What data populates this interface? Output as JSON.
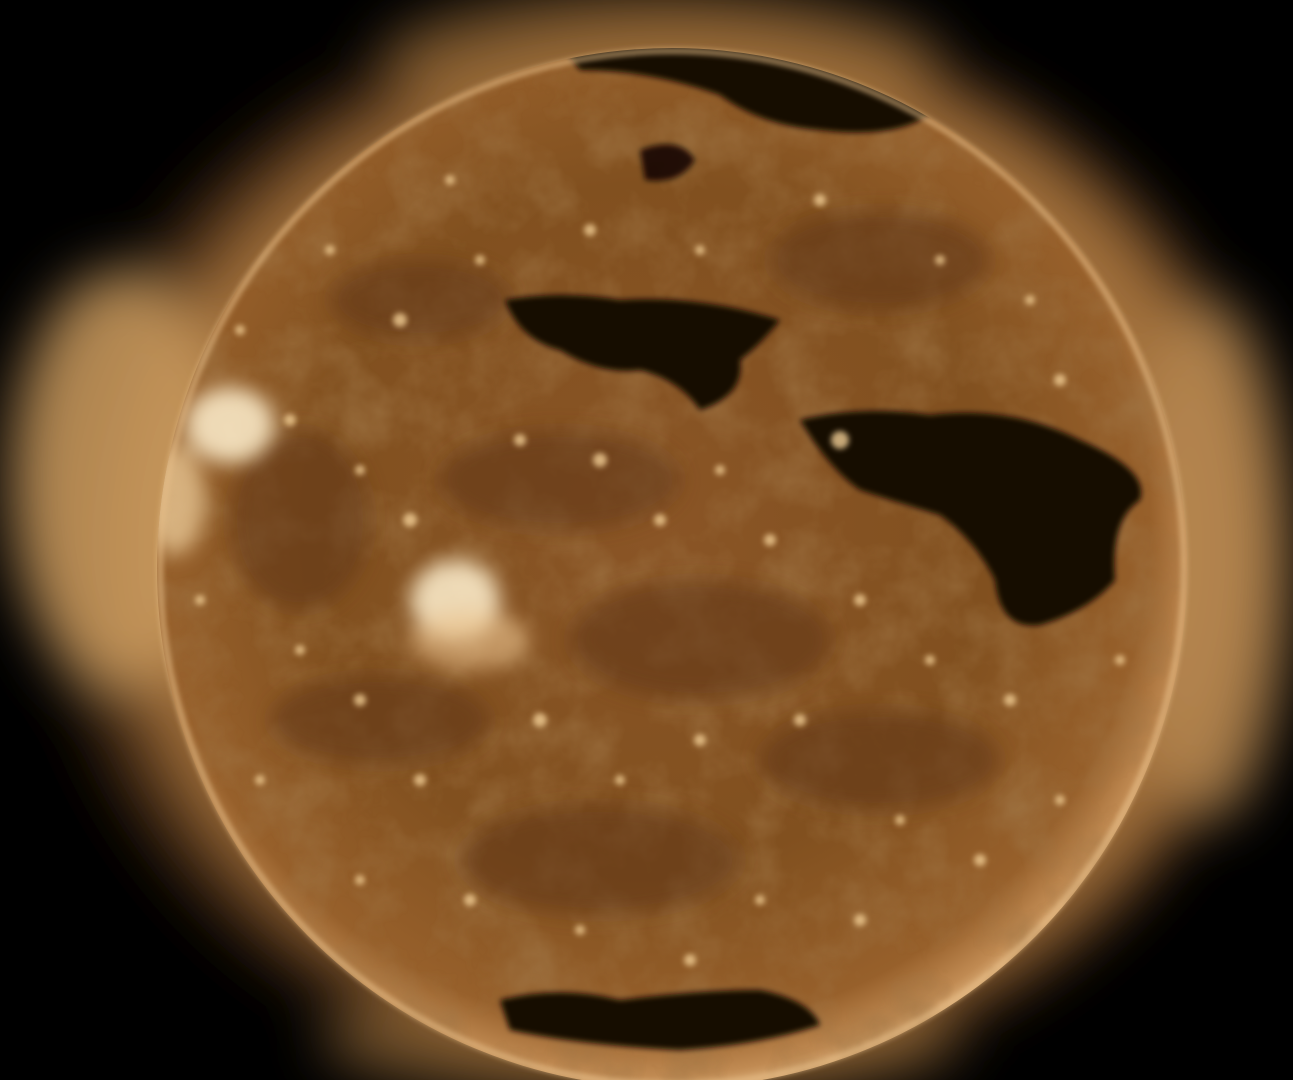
{
  "image": {
    "subject": "sun",
    "background_color": "#000000",
    "corona_color": "#c99a5e",
    "limb_color": "#e2b680",
    "disk_color": "#8a5526",
    "disk_dark_color": "#5e3614",
    "coronal_hole_color": "#120703",
    "bright_region_color": "#fff0cf",
    "feature_names": [
      "solar-corona",
      "solar-disk",
      "bright-limb",
      "coronal-hole-north",
      "coronal-hole-central",
      "coronal-hole-east",
      "coronal-hole-south",
      "active-region-west-limb",
      "active-region-center-left",
      "bright-points"
    ]
  }
}
